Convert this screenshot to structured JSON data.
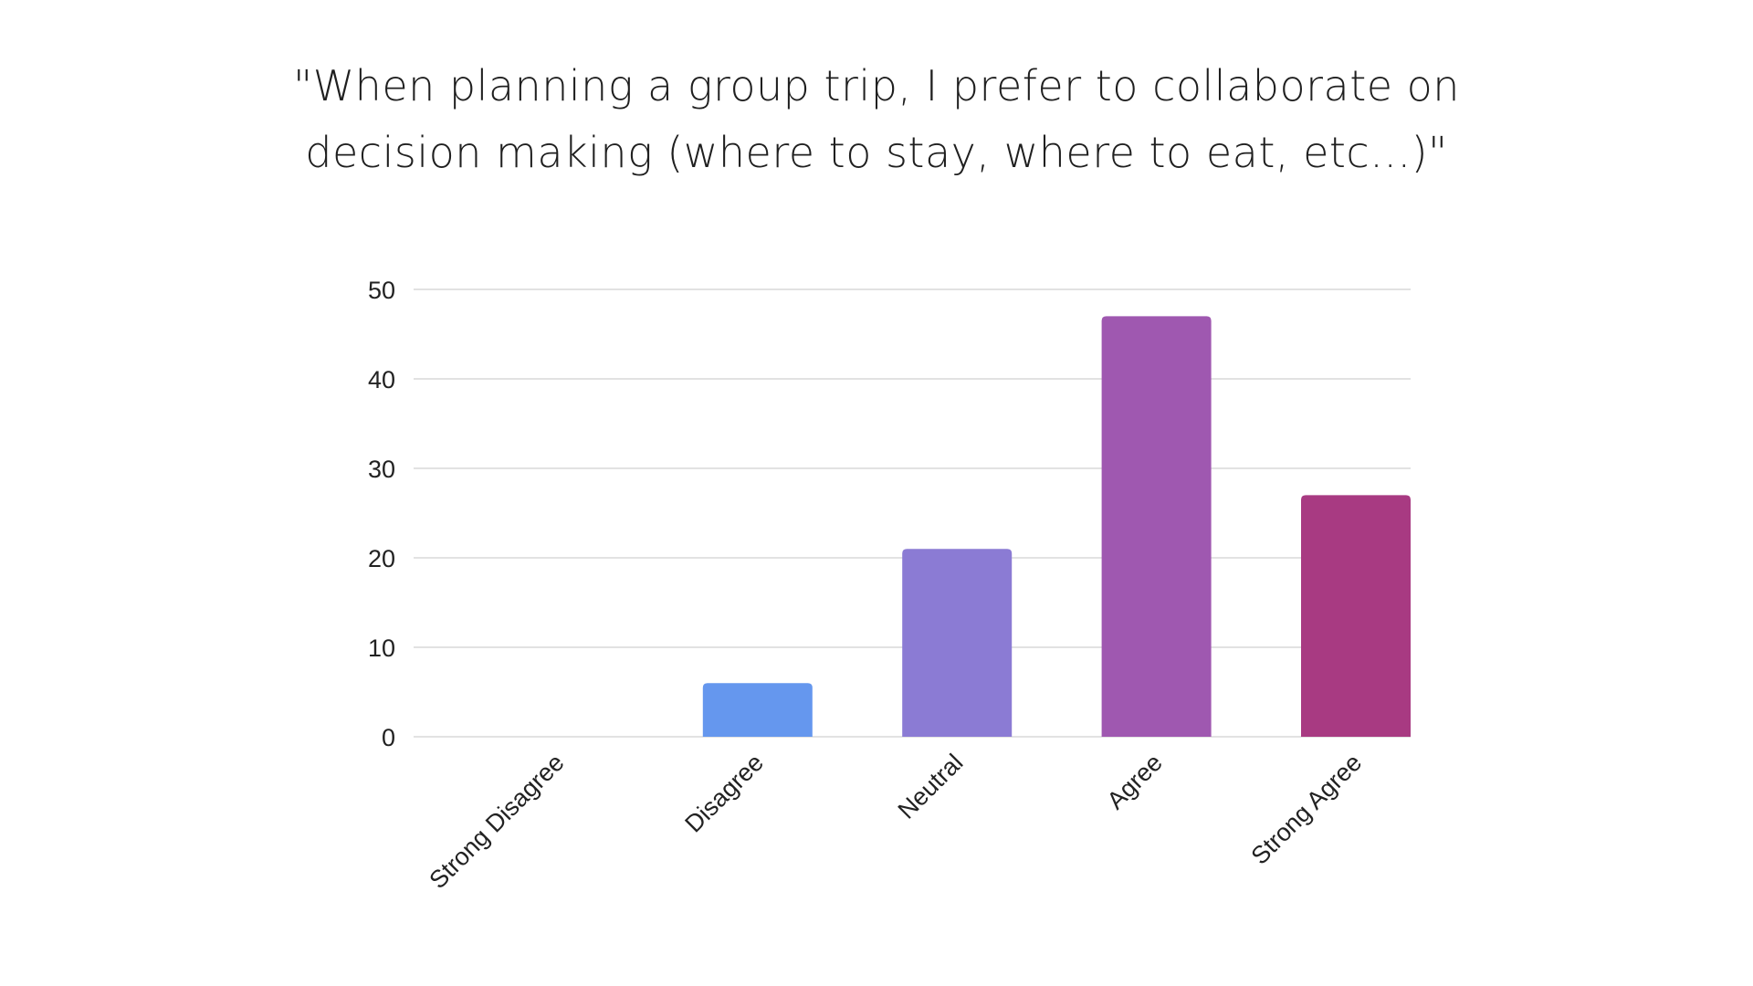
{
  "title_lines": [
    "\"When planning a group trip, I prefer to collaborate on",
    "decision making (where to stay, where to eat, etc...)\""
  ],
  "chart_data": {
    "type": "bar",
    "title": "\"When planning a group trip, I prefer to collaborate on decision making (where to stay, where to eat, etc...)\"",
    "categories": [
      "Strong Disagree",
      "Disagree",
      "Neutral",
      "Agree",
      "Strong Agree"
    ],
    "values": [
      0,
      6,
      21,
      47,
      27
    ],
    "colors": [
      "#6597ee",
      "#6597ee",
      "#8b7bd4",
      "#9f58b0",
      "#a83a82"
    ],
    "xlabel": "",
    "ylabel": "",
    "ylim": [
      0,
      50
    ],
    "yticks": [
      0,
      10,
      20,
      30,
      40,
      50
    ],
    "grid": true,
    "grid_color": "#d9d9d9",
    "legend": "none"
  }
}
